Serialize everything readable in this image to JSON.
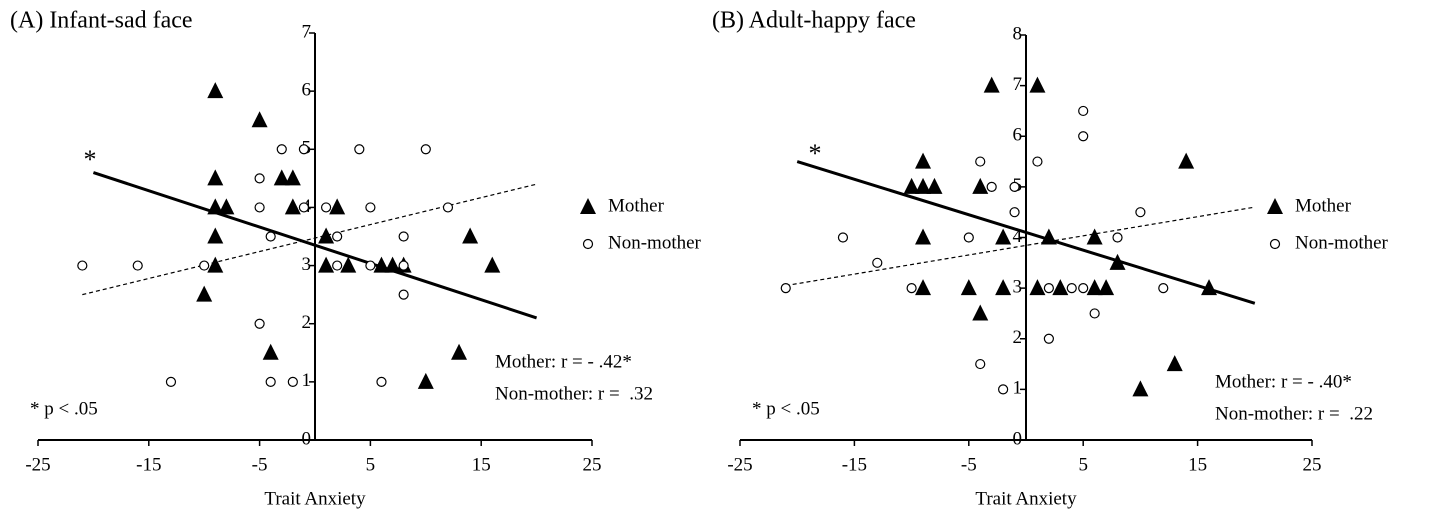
{
  "chart_data": [
    {
      "type": "scatter",
      "title": "(A) Infant-sad face",
      "x_label": "Trait Anxiety",
      "xlim": [
        -25,
        25
      ],
      "xticks": [
        -25,
        -15,
        -5,
        5,
        15,
        25
      ],
      "ylim": [
        0,
        7
      ],
      "yticks": [
        0,
        1,
        2,
        3,
        4,
        5,
        6,
        7
      ],
      "annotations": [
        "*",
        "* p < .05",
        "Mother: r = - .42*",
        "Non-mother: r =  .32"
      ],
      "series": [
        {
          "name": "Mother",
          "marker": "triangle",
          "color": "#000000",
          "line_style": "solid",
          "x": [
            -9,
            -5,
            -9,
            -9,
            -8,
            -3,
            -2,
            -2,
            -9,
            -9,
            -10,
            1,
            1,
            2,
            3,
            6,
            7,
            8,
            14,
            16,
            -4,
            13,
            10
          ],
          "y": [
            6,
            5.5,
            4.5,
            4,
            4,
            4.5,
            4.5,
            4,
            3.5,
            3,
            2.5,
            3.5,
            3,
            4,
            3,
            3,
            3,
            3,
            3.5,
            3,
            1.5,
            1.5,
            1
          ],
          "fit": {
            "x": [
              -20,
              20
            ],
            "y": [
              4.6,
              2.1
            ]
          }
        },
        {
          "name": "Non-mother",
          "marker": "circle",
          "color": "#000000",
          "line_style": "dashed",
          "x": [
            -21,
            -16,
            -13,
            -10,
            -5,
            -5,
            -4,
            -3,
            -1,
            -1,
            1,
            2,
            2,
            4,
            5,
            5,
            8,
            8,
            8,
            10,
            12,
            -5,
            -4,
            -2,
            6
          ],
          "y": [
            3,
            3,
            1,
            3,
            4.5,
            4,
            3.5,
            5,
            5,
            4,
            4,
            3.5,
            3,
            5,
            4,
            3,
            3.5,
            2.5,
            3,
            5,
            4,
            2,
            1,
            1,
            1
          ],
          "fit": {
            "x": [
              -21,
              20
            ],
            "y": [
              2.5,
              4.4
            ]
          }
        }
      ]
    },
    {
      "type": "scatter",
      "title": "(B) Adult-happy face",
      "x_label": "Trait Anxiety",
      "xlim": [
        -25,
        25
      ],
      "xticks": [
        -25,
        -15,
        -5,
        5,
        15,
        25
      ],
      "ylim": [
        0,
        8
      ],
      "yticks": [
        0,
        1,
        2,
        3,
        4,
        5,
        6,
        7,
        8
      ],
      "annotations": [
        "*",
        "* p < .05",
        "Mother: r = - .40*",
        "Non-mother: r =  .22"
      ],
      "series": [
        {
          "name": "Mother",
          "marker": "triangle",
          "color": "#000000",
          "line_style": "solid",
          "x": [
            -3,
            1,
            14,
            -9,
            -10,
            -9,
            -8,
            -4,
            -9,
            -2,
            2,
            6,
            8,
            -9,
            -5,
            -2,
            1,
            3,
            6,
            7,
            16,
            -4,
            13,
            10
          ],
          "y": [
            7,
            7,
            5.5,
            5.5,
            5,
            5,
            5,
            5,
            4,
            4,
            4,
            4,
            3.5,
            3,
            3,
            3,
            3,
            3,
            3,
            3,
            3,
            2.5,
            1.5,
            1
          ],
          "fit": {
            "x": [
              -20,
              20
            ],
            "y": [
              5.5,
              2.7
            ]
          }
        },
        {
          "name": "Non-mother",
          "marker": "circle",
          "color": "#000000",
          "line_style": "dashed",
          "x": [
            -21,
            -16,
            -13,
            -10,
            -4,
            -3,
            -1,
            -1,
            1,
            -5,
            5,
            5,
            10,
            8,
            2,
            4,
            5,
            12,
            6,
            2,
            -4,
            -2
          ],
          "y": [
            3,
            4,
            3.5,
            3,
            5.5,
            5,
            5,
            4.5,
            5.5,
            4,
            6.5,
            6,
            4.5,
            4,
            3,
            3,
            3,
            3,
            2.5,
            2,
            1.5,
            1
          ],
          "fit": {
            "x": [
              -21,
              20
            ],
            "y": [
              3.05,
              4.6
            ]
          }
        }
      ]
    }
  ]
}
